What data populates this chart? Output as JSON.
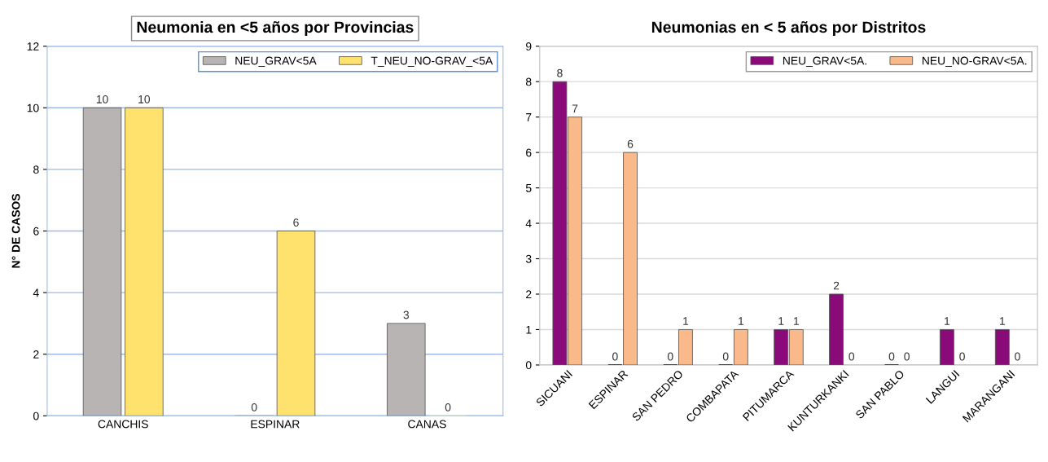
{
  "chart_data": [
    {
      "type": "bar",
      "title": "Neumonia en <5 años por Provincias",
      "ylabel": "N° DE CASOS",
      "categories": [
        "CANCHIS",
        "ESPINAR",
        "CANAS"
      ],
      "series": [
        {
          "name": "NEU_GRAV<5A",
          "color": "#b8b4b4",
          "values": [
            10,
            0,
            3
          ]
        },
        {
          "name": "T_NEU_NO-GRAV_<5A",
          "color": "#ffe26e",
          "values": [
            10,
            6,
            0
          ]
        }
      ],
      "ylim": [
        0,
        12
      ],
      "yticks": [
        0,
        2,
        4,
        6,
        8,
        10,
        12
      ],
      "grid": "y",
      "legend": "top right",
      "data_labels": true
    },
    {
      "type": "bar",
      "title": "Neumonias en < 5 años por Distritos",
      "categories": [
        "SICUANI",
        "ESPINAR",
        "SAN PEDRO",
        "COMBAPATA",
        "PITUMARCA",
        "KUNTURKANKI",
        "SAN PABLO",
        "LANGUI",
        "MARANGANI"
      ],
      "series": [
        {
          "name": "NEU_GRAV<5A.",
          "color": "#8b0a7a",
          "values": [
            8,
            0,
            0,
            0,
            1,
            2,
            0,
            1,
            1
          ]
        },
        {
          "name": "NEU_NO-GRAV<5A.",
          "color": "#f9b98a",
          "values": [
            7,
            6,
            1,
            1,
            1,
            0,
            0,
            0,
            0
          ]
        }
      ],
      "ylim": [
        0,
        9
      ],
      "yticks": [
        0,
        1,
        2,
        3,
        4,
        5,
        6,
        7,
        8,
        9
      ],
      "grid": "y",
      "legend": "top right",
      "data_labels": true
    }
  ]
}
